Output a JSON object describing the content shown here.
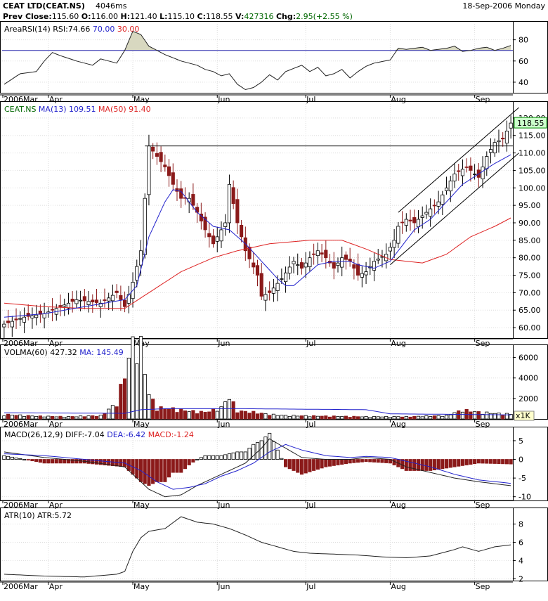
{
  "header": {
    "title": "CEAT LTD(CEAT.NS)",
    "timing": "4046ms",
    "date": "18-Sep-2006 Monday",
    "prev_close_label": "Prev Close:",
    "prev_close": "115.60",
    "open_label": "O:",
    "open": "116.00",
    "high_label": "H:",
    "high": "121.40",
    "low_label": "L:",
    "low": "115.10",
    "close_label": "C:",
    "close": "118.55",
    "volume_label": "V:",
    "volume": "427316",
    "change_label": "Chg:",
    "change": "2.95(+2.55 %)"
  },
  "colors": {
    "up": "#ffffff",
    "down": "#8b1a1a",
    "ma_short": "#2222cc",
    "ma_long": "#dd2222",
    "grid": "#dddddd",
    "text": "#000000",
    "last_price_bg": "#ccffcc"
  },
  "x_axis": {
    "labels": [
      "2006Mar",
      "Apr",
      "May",
      "Jun",
      "Jul",
      "Aug",
      "Sep"
    ]
  },
  "panels": {
    "rsi": {
      "title": "AreaRSI(14)",
      "rsi_label": "RSI:",
      "rsi_value": "74.66",
      "upper": "70.00",
      "lower": "30.00",
      "ticks": [
        "80",
        "60",
        "40"
      ]
    },
    "price": {
      "symbol": "CEAT.NS",
      "ma13_label": "MA(13)",
      "ma13_value": "109.51",
      "ma50_label": "MA(50)",
      "ma50_value": "91.40",
      "last_price": "118.55",
      "ticks": [
        "120.00",
        "115.00",
        "110.00",
        "105.00",
        "100.00",
        "95.00",
        "90.00",
        "85.00",
        "80.00",
        "75.00",
        "70.00",
        "65.00",
        "60.00"
      ]
    },
    "volume": {
      "title": "VOLMA(60)",
      "value": "427.32",
      "ma_label": "MA:",
      "ma_value": "145.49",
      "unit": "x1K",
      "ticks": [
        "6000",
        "4000",
        "2000"
      ]
    },
    "macd": {
      "title": "MACD(26,12,9)",
      "diff_label": "DIFF:",
      "diff_value": "-7.04",
      "dea_label": "DEA:",
      "dea_value": "-6.42",
      "macd_label": "MACD:",
      "macd_value": "-1.24",
      "ticks": [
        "5",
        "0",
        "-5",
        "-10"
      ]
    },
    "atr": {
      "title": "ATR(10)",
      "atr_label": "ATR:",
      "atr_value": "5.72",
      "ticks": [
        "8",
        "6",
        "4",
        "2"
      ]
    }
  },
  "chart_data": {
    "type": "line",
    "x_months": [
      "2006Mar",
      "Apr",
      "May",
      "Jun",
      "Jul",
      "Aug",
      "Sep"
    ],
    "price_ylim": [
      57,
      124
    ],
    "price_close_keypoints": [
      [
        0,
        61
      ],
      [
        5,
        63
      ],
      [
        10,
        64
      ],
      [
        14,
        66
      ],
      [
        18,
        68
      ],
      [
        24,
        67
      ],
      [
        28,
        70
      ],
      [
        30,
        66
      ],
      [
        32,
        73
      ],
      [
        34,
        82
      ],
      [
        35,
        97
      ],
      [
        36,
        112
      ],
      [
        38,
        109
      ],
      [
        40,
        106
      ],
      [
        42,
        101
      ],
      [
        44,
        97
      ],
      [
        46,
        97
      ],
      [
        48,
        93
      ],
      [
        50,
        88
      ],
      [
        52,
        84
      ],
      [
        55,
        90
      ],
      [
        56,
        101
      ],
      [
        58,
        90
      ],
      [
        60,
        82
      ],
      [
        63,
        75
      ],
      [
        64,
        69
      ],
      [
        66,
        70
      ],
      [
        69,
        74
      ],
      [
        72,
        79
      ],
      [
        74,
        77
      ],
      [
        76,
        80
      ],
      [
        78,
        82
      ],
      [
        80,
        80
      ],
      [
        82,
        77
      ],
      [
        84,
        80
      ],
      [
        86,
        79
      ],
      [
        88,
        75
      ],
      [
        90,
        76
      ],
      [
        92,
        79
      ],
      [
        95,
        81
      ],
      [
        97,
        85
      ],
      [
        98,
        89
      ],
      [
        100,
        91
      ],
      [
        102,
        90
      ],
      [
        105,
        93
      ],
      [
        108,
        96
      ],
      [
        110,
        100
      ],
      [
        112,
        104
      ],
      [
        115,
        106
      ],
      [
        118,
        103
      ],
      [
        120,
        109
      ],
      [
        122,
        113
      ],
      [
        124,
        114
      ],
      [
        126,
        118.55
      ]
    ],
    "ma13_keypoints": [
      [
        0,
        63
      ],
      [
        10,
        64
      ],
      [
        20,
        66
      ],
      [
        30,
        68
      ],
      [
        33,
        72
      ],
      [
        36,
        86
      ],
      [
        40,
        96
      ],
      [
        42,
        99.5
      ],
      [
        44,
        99
      ],
      [
        48,
        93
      ],
      [
        52,
        89
      ],
      [
        56,
        88
      ],
      [
        60,
        84
      ],
      [
        64,
        79
      ],
      [
        68,
        74
      ],
      [
        70,
        72
      ],
      [
        72,
        72
      ],
      [
        75,
        75
      ],
      [
        78,
        78
      ],
      [
        82,
        79
      ],
      [
        86,
        79
      ],
      [
        88,
        78
      ],
      [
        92,
        77
      ],
      [
        96,
        79
      ],
      [
        98,
        82
      ],
      [
        102,
        88
      ],
      [
        106,
        91
      ],
      [
        110,
        96
      ],
      [
        114,
        101
      ],
      [
        118,
        104
      ],
      [
        122,
        107
      ],
      [
        126,
        109.5
      ]
    ],
    "ma50_keypoints": [
      [
        0,
        67
      ],
      [
        10,
        66
      ],
      [
        20,
        65.5
      ],
      [
        30,
        65.5
      ],
      [
        36,
        70
      ],
      [
        44,
        76
      ],
      [
        52,
        80
      ],
      [
        58,
        82
      ],
      [
        66,
        84
      ],
      [
        76,
        85
      ],
      [
        84,
        85
      ],
      [
        90,
        82.5
      ],
      [
        96,
        79.5
      ],
      [
        104,
        78.5
      ],
      [
        110,
        81
      ],
      [
        116,
        86
      ],
      [
        122,
        89
      ],
      [
        126,
        91.4
      ]
    ],
    "resistance_level": 112,
    "channel_upper": [
      [
        98,
        93
      ],
      [
        128,
        123
      ]
    ],
    "channel_lower": [
      [
        96,
        78
      ],
      [
        128,
        110
      ]
    ],
    "rsi_ylim": [
      30,
      95
    ],
    "rsi_keypoints": [
      [
        0,
        38
      ],
      [
        4,
        48
      ],
      [
        8,
        50
      ],
      [
        10,
        60
      ],
      [
        12,
        68
      ],
      [
        14,
        65
      ],
      [
        18,
        60
      ],
      [
        22,
        56
      ],
      [
        24,
        62
      ],
      [
        28,
        58
      ],
      [
        30,
        70
      ],
      [
        32,
        88
      ],
      [
        34,
        85
      ],
      [
        36,
        74
      ],
      [
        40,
        66
      ],
      [
        44,
        60
      ],
      [
        48,
        56
      ],
      [
        50,
        52
      ],
      [
        52,
        50
      ],
      [
        54,
        46
      ],
      [
        56,
        48
      ],
      [
        58,
        38
      ],
      [
        60,
        33
      ],
      [
        62,
        35
      ],
      [
        64,
        40
      ],
      [
        66,
        47
      ],
      [
        68,
        42
      ],
      [
        70,
        50
      ],
      [
        72,
        53
      ],
      [
        74,
        56
      ],
      [
        76,
        50
      ],
      [
        78,
        54
      ],
      [
        80,
        46
      ],
      [
        82,
        48
      ],
      [
        84,
        52
      ],
      [
        86,
        44
      ],
      [
        88,
        50
      ],
      [
        90,
        55
      ],
      [
        92,
        58
      ],
      [
        96,
        61
      ],
      [
        98,
        72
      ],
      [
        100,
        71
      ],
      [
        104,
        73
      ],
      [
        106,
        70
      ],
      [
        110,
        72
      ],
      [
        112,
        74
      ],
      [
        114,
        69
      ],
      [
        116,
        70
      ],
      [
        118,
        72
      ],
      [
        120,
        73
      ],
      [
        122,
        70
      ],
      [
        124,
        72
      ],
      [
        126,
        74.66
      ]
    ],
    "volume_ylim": [
      0,
      7000
    ],
    "volume_unit": "x1K",
    "volume_ma": 145.49,
    "volume_keypoints": [
      [
        0,
        400
      ],
      [
        8,
        250
      ],
      [
        16,
        200
      ],
      [
        24,
        300
      ],
      [
        28,
        1400
      ],
      [
        32,
        6700
      ],
      [
        34,
        6500
      ],
      [
        36,
        2200
      ],
      [
        38,
        1000
      ],
      [
        42,
        900
      ],
      [
        46,
        700
      ],
      [
        50,
        600
      ],
      [
        54,
        1000
      ],
      [
        56,
        2000
      ],
      [
        58,
        700
      ],
      [
        62,
        600
      ],
      [
        66,
        400
      ],
      [
        70,
        300
      ],
      [
        80,
        250
      ],
      [
        90,
        200
      ],
      [
        100,
        200
      ],
      [
        110,
        300
      ],
      [
        114,
        800
      ],
      [
        118,
        600
      ],
      [
        122,
        500
      ],
      [
        126,
        427.32
      ]
    ],
    "macd_ylim": [
      -11,
      8
    ],
    "diff_keypoints": [
      [
        0,
        2
      ],
      [
        10,
        0.5
      ],
      [
        20,
        -0.5
      ],
      [
        30,
        -2
      ],
      [
        33,
        -5
      ],
      [
        36,
        -8
      ],
      [
        40,
        -10
      ],
      [
        44,
        -9.5
      ],
      [
        48,
        -7
      ],
      [
        52,
        -5
      ],
      [
        56,
        -3
      ],
      [
        60,
        -1
      ],
      [
        64,
        3
      ],
      [
        66,
        5.5
      ],
      [
        70,
        3
      ],
      [
        74,
        0.5
      ],
      [
        80,
        0
      ],
      [
        86,
        0
      ],
      [
        90,
        0.5
      ],
      [
        96,
        0
      ],
      [
        100,
        -2
      ],
      [
        106,
        -3.5
      ],
      [
        112,
        -5
      ],
      [
        118,
        -6
      ],
      [
        126,
        -7.04
      ]
    ],
    "dea_keypoints": [
      [
        0,
        1.5
      ],
      [
        10,
        1
      ],
      [
        20,
        0
      ],
      [
        30,
        -1
      ],
      [
        34,
        -3
      ],
      [
        38,
        -6
      ],
      [
        42,
        -8
      ],
      [
        46,
        -7.5
      ],
      [
        50,
        -6.5
      ],
      [
        54,
        -4.5
      ],
      [
        58,
        -3
      ],
      [
        62,
        -1
      ],
      [
        66,
        2
      ],
      [
        70,
        4
      ],
      [
        74,
        2.5
      ],
      [
        80,
        1
      ],
      [
        86,
        0.5
      ],
      [
        90,
        0.8
      ],
      [
        96,
        0.5
      ],
      [
        100,
        -0.5
      ],
      [
        106,
        -2
      ],
      [
        112,
        -4
      ],
      [
        118,
        -5.5
      ],
      [
        126,
        -6.42
      ]
    ],
    "atr_ylim": [
      1.8,
      9.5
    ],
    "atr_keypoints": [
      [
        0,
        2.5
      ],
      [
        10,
        2.3
      ],
      [
        20,
        2.2
      ],
      [
        28,
        2.5
      ],
      [
        30,
        2.8
      ],
      [
        32,
        5
      ],
      [
        34,
        6.5
      ],
      [
        36,
        7.2
      ],
      [
        40,
        7.5
      ],
      [
        44,
        8.8
      ],
      [
        48,
        8.2
      ],
      [
        52,
        8.0
      ],
      [
        56,
        7.5
      ],
      [
        60,
        6.8
      ],
      [
        64,
        6.0
      ],
      [
        68,
        5.5
      ],
      [
        72,
        5.0
      ],
      [
        76,
        4.8
      ],
      [
        82,
        4.7
      ],
      [
        88,
        4.6
      ],
      [
        94,
        4.4
      ],
      [
        100,
        4.3
      ],
      [
        106,
        4.5
      ],
      [
        112,
        5.2
      ],
      [
        114,
        5.5
      ],
      [
        118,
        5.0
      ],
      [
        122,
        5.5
      ],
      [
        126,
        5.72
      ]
    ]
  }
}
